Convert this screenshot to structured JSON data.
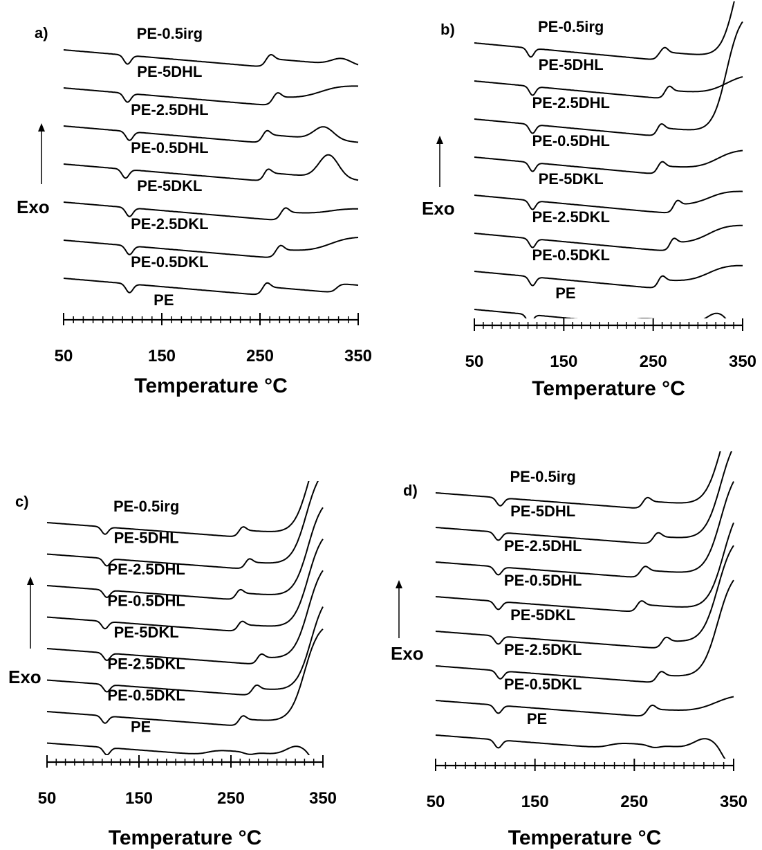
{
  "chart_data": [
    {
      "panel": "a)",
      "type": "line",
      "xlabel": "Temperature °C",
      "ylabel": "Exo",
      "xticks": [
        50,
        150,
        250,
        350
      ],
      "xlim": [
        50,
        350
      ],
      "grid": false,
      "series": [
        {
          "name": "PE-0.5irg",
          "onset": 255,
          "peak": 261,
          "melt": 115,
          "tail": "hump",
          "tail_start": 318,
          "tail_level": 0.3
        },
        {
          "name": "PE-5DHL",
          "onset": 262,
          "peak": 268,
          "melt": 115,
          "tail": "rise",
          "tail_start": 300,
          "tail_level": 0.9
        },
        {
          "name": "PE-2.5DHL",
          "onset": 252,
          "peak": 257,
          "melt": 117,
          "tail": "hump",
          "tail_start": 300,
          "tail_level": 0.6
        },
        {
          "name": "PE-0.5DHL",
          "onset": 254,
          "peak": 258,
          "melt": 113,
          "tail": "hump",
          "tail_start": 305,
          "tail_level": 1.1
        },
        {
          "name": "PE-5DKL",
          "onset": 270,
          "peak": 276,
          "melt": 117,
          "tail": "rise",
          "tail_start": 310,
          "tail_level": 0.5
        },
        {
          "name": "PE-2.5DKL",
          "onset": 265,
          "peak": 271,
          "melt": 117,
          "tail": "rise",
          "tail_start": 310,
          "tail_level": 1.0
        },
        {
          "name": "PE-0.5DKL",
          "onset": 252,
          "peak": 257,
          "melt": 117,
          "tail": "step",
          "tail_start": 328,
          "tail_level": 0.45
        },
        {
          "name": "PE",
          "onset": 0,
          "peak": 0,
          "melt": 113,
          "tail": "pe",
          "tail_start": 0,
          "tail_level": 0
        }
      ]
    },
    {
      "panel": "b)",
      "type": "line",
      "xlabel": "Temperature °C",
      "ylabel": "Exo",
      "xticks": [
        50,
        150,
        250,
        350
      ],
      "xlim": [
        50,
        350
      ],
      "grid": false,
      "series": [
        {
          "name": "PE-0.5irg",
          "onset": 255,
          "peak": 263,
          "melt": 113,
          "tail": "exit",
          "tail_start": 330,
          "tail_level": 0
        },
        {
          "name": "PE-5DHL",
          "onset": 262,
          "peak": 268,
          "melt": 115,
          "tail": "rise",
          "tail_start": 320,
          "tail_level": 1.2
        },
        {
          "name": "PE-2.5DHL",
          "onset": 254,
          "peak": 259,
          "melt": 115,
          "tail": "exit",
          "tail_start": 320,
          "tail_level": 0
        },
        {
          "name": "PE-0.5DHL",
          "onset": 254,
          "peak": 260,
          "melt": 115,
          "tail": "rise",
          "tail_start": 310,
          "tail_level": 1.2
        },
        {
          "name": "PE-5DKL",
          "onset": 272,
          "peak": 277,
          "melt": 115,
          "tail": "rise",
          "tail_start": 300,
          "tail_level": 1.0
        },
        {
          "name": "PE-2.5DKL",
          "onset": 268,
          "peak": 273,
          "melt": 115,
          "tail": "rise",
          "tail_start": 300,
          "tail_level": 1.2
        },
        {
          "name": "PE-0.5DKL",
          "onset": 255,
          "peak": 260,
          "melt": 115,
          "tail": "rise",
          "tail_start": 300,
          "tail_level": 1.1
        },
        {
          "name": "PE",
          "onset": 0,
          "peak": 0,
          "melt": 112,
          "tail": "pe",
          "tail_start": 0,
          "tail_level": 0
        }
      ]
    },
    {
      "panel": "c)",
      "type": "line",
      "xlabel": "Temperature °C",
      "ylabel": "Exo",
      "xticks": [
        50,
        150,
        250,
        350
      ],
      "xlim": [
        50,
        350
      ],
      "grid": false,
      "series": [
        {
          "name": "PE-0.5irg",
          "onset": 258,
          "peak": 263,
          "melt": 113,
          "tail": "exit",
          "tail_start": 322,
          "tail_level": 0
        },
        {
          "name": "PE-5DHL",
          "onset": 265,
          "peak": 270,
          "melt": 115,
          "tail": "exit",
          "tail_start": 320,
          "tail_level": 0
        },
        {
          "name": "PE-2.5DHL",
          "onset": 255,
          "peak": 260,
          "melt": 115,
          "tail": "exit",
          "tail_start": 322,
          "tail_level": 0
        },
        {
          "name": "PE-0.5DHL",
          "onset": 257,
          "peak": 262,
          "melt": 113,
          "tail": "exit",
          "tail_start": 322,
          "tail_level": 0
        },
        {
          "name": "PE-5DKL",
          "onset": 278,
          "peak": 283,
          "melt": 115,
          "tail": "exit",
          "tail_start": 322,
          "tail_level": 0
        },
        {
          "name": "PE-2.5DKL",
          "onset": 272,
          "peak": 278,
          "melt": 115,
          "tail": "exit",
          "tail_start": 325,
          "tail_level": 0
        },
        {
          "name": "PE-0.5DKL",
          "onset": 258,
          "peak": 263,
          "melt": 113,
          "tail": "exit",
          "tail_start": 318,
          "tail_level": 0
        },
        {
          "name": "PE",
          "onset": 0,
          "peak": 0,
          "melt": 115,
          "tail": "pe",
          "tail_start": 0,
          "tail_level": 0
        }
      ]
    },
    {
      "panel": "d)",
      "type": "line",
      "xlabel": "Temperature °C",
      "ylabel": "Exo",
      "xticks": [
        50,
        150,
        250,
        350
      ],
      "xlim": [
        50,
        350
      ],
      "grid": false,
      "series": [
        {
          "name": "PE-0.5irg",
          "onset": 258,
          "peak": 263,
          "melt": 115,
          "tail": "exit",
          "tail_start": 325,
          "tail_level": 0
        },
        {
          "name": "PE-5DHL",
          "onset": 268,
          "peak": 274,
          "melt": 113,
          "tail": "exit",
          "tail_start": 325,
          "tail_level": 0
        },
        {
          "name": "PE-2.5DHL",
          "onset": 255,
          "peak": 261,
          "melt": 113,
          "tail": "exit",
          "tail_start": 325,
          "tail_level": 0
        },
        {
          "name": "PE-0.5DHL",
          "onset": 252,
          "peak": 257,
          "melt": 113,
          "tail": "exit",
          "tail_start": 328,
          "tail_level": 0
        },
        {
          "name": "PE-5DKL",
          "onset": 277,
          "peak": 282,
          "melt": 113,
          "tail": "exit",
          "tail_start": 322,
          "tail_level": 0
        },
        {
          "name": "PE-2.5DKL",
          "onset": 272,
          "peak": 277,
          "melt": 115,
          "tail": "exit",
          "tail_start": 322,
          "tail_level": 0
        },
        {
          "name": "PE-0.5DKL",
          "onset": 262,
          "peak": 268,
          "melt": 113,
          "tail": "rise",
          "tail_start": 320,
          "tail_level": 1.2
        },
        {
          "name": "PE",
          "onset": 0,
          "peak": 0,
          "melt": 113,
          "tail": "pe",
          "tail_start": 0,
          "tail_level": 0
        }
      ]
    }
  ]
}
